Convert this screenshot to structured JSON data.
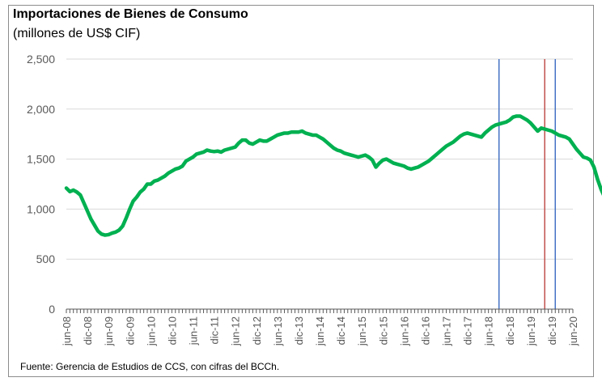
{
  "chart_data": {
    "type": "line",
    "title": "Importaciones de Bienes de Consumo",
    "subtitle": "(millones de US$ CIF)",
    "source": "Fuente: Gerencia de Estudios de CCS, con cifras del BCCh.",
    "ylim": [
      0,
      2500
    ],
    "yticks": [
      0,
      500,
      1000,
      1500,
      2000,
      2500
    ],
    "ytick_labels": [
      "0",
      "500",
      "1,000",
      "1,500",
      "2,000",
      "2,500"
    ],
    "grid": true,
    "x_tick_labels": [
      "jun-08",
      "dic-08",
      "jun-09",
      "dic-09",
      "jun-10",
      "dic-10",
      "jun-11",
      "dic-11",
      "jun-12",
      "dic-12",
      "jun-13",
      "dic-13",
      "jun-14",
      "dic-14",
      "jun-15",
      "dic-15",
      "jun-16",
      "dic-16",
      "jun-17",
      "dic-17",
      "jun-18",
      "dic-18",
      "jun-19",
      "dic-19",
      "jun-20"
    ],
    "series": [
      {
        "color": "#00b050",
        "start": "2008-06",
        "end": "2020-06",
        "values": [
          1210,
          1175,
          1190,
          1170,
          1140,
          1060,
          980,
          900,
          840,
          780,
          750,
          740,
          745,
          760,
          770,
          790,
          830,
          910,
          1000,
          1080,
          1120,
          1170,
          1200,
          1250,
          1250,
          1280,
          1290,
          1310,
          1330,
          1360,
          1380,
          1400,
          1410,
          1430,
          1480,
          1500,
          1520,
          1550,
          1560,
          1570,
          1590,
          1580,
          1575,
          1580,
          1570,
          1590,
          1600,
          1610,
          1620,
          1660,
          1690,
          1690,
          1660,
          1650,
          1670,
          1690,
          1680,
          1680,
          1700,
          1720,
          1740,
          1750,
          1760,
          1760,
          1770,
          1770,
          1770,
          1780,
          1760,
          1750,
          1740,
          1740,
          1720,
          1700,
          1670,
          1640,
          1610,
          1590,
          1580,
          1560,
          1550,
          1540,
          1530,
          1520,
          1530,
          1540,
          1520,
          1490,
          1420,
          1460,
          1490,
          1500,
          1480,
          1460,
          1450,
          1440,
          1430,
          1410,
          1400,
          1410,
          1420,
          1440,
          1460,
          1480,
          1510,
          1540,
          1570,
          1600,
          1630,
          1650,
          1670,
          1700,
          1730,
          1750,
          1760,
          1750,
          1740,
          1730,
          1720,
          1760,
          1790,
          1820,
          1840,
          1850,
          1860,
          1870,
          1890,
          1920,
          1930,
          1930,
          1910,
          1890,
          1860,
          1820,
          1780,
          1810,
          1800,
          1790,
          1780,
          1760,
          1740,
          1730,
          1720,
          1700,
          1650,
          1600,
          1560,
          1520,
          1510,
          1490,
          1420,
          1300,
          1200,
          1120
        ]
      }
    ],
    "vertical_lines": [
      {
        "date": "2018-09",
        "color": "#4472c4"
      },
      {
        "date": "2019-10",
        "color": "#c0504d"
      },
      {
        "date": "2020-01",
        "color": "#4472c4"
      }
    ]
  }
}
